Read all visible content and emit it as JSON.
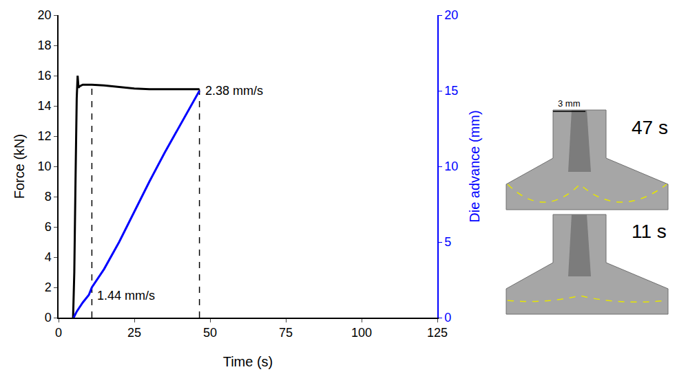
{
  "chart_data": {
    "type": "line",
    "x_label": "Time (s)",
    "y_label": "Force (kN)",
    "y2_label": "Die advance (mm)",
    "xlim": [
      0,
      125
    ],
    "xticks": [
      0,
      25,
      50,
      75,
      100,
      125
    ],
    "ylim": [
      0,
      20
    ],
    "yticks": [
      0,
      2,
      4,
      6,
      8,
      10,
      12,
      14,
      16,
      18,
      20
    ],
    "y2lim": [
      0,
      20
    ],
    "y2ticks": [
      0,
      5,
      10,
      15,
      20
    ],
    "grid": false,
    "series": [
      {
        "name": "Force (kN)",
        "color": "#000000",
        "axis": "y",
        "x": [
          4.8,
          5.2,
          5.6,
          6.0,
          6.3,
          6.6,
          7,
          8,
          9,
          10,
          11,
          15,
          20,
          25,
          30,
          35,
          40,
          46.5
        ],
        "values": [
          0,
          3,
          9,
          14.5,
          16.0,
          15.2,
          15.3,
          15.4,
          15.4,
          15.4,
          15.4,
          15.35,
          15.25,
          15.15,
          15.1,
          15.1,
          15.1,
          15.1
        ]
      },
      {
        "name": "Die advance (mm)",
        "color": "#0000ff",
        "axis": "y2",
        "x": [
          5,
          6,
          8,
          10,
          11,
          15,
          20,
          25,
          30,
          35,
          40,
          46.5
        ],
        "values": [
          0,
          0.4,
          1.0,
          1.5,
          2.0,
          3.2,
          5.0,
          7.0,
          9.0,
          10.9,
          12.7,
          15.0
        ]
      }
    ],
    "dashed_lines": [
      {
        "x": [
          11,
          11
        ],
        "y": [
          0,
          15.4
        ]
      },
      {
        "x": [
          46.5,
          46.5
        ],
        "y": [
          0,
          15.1
        ]
      }
    ],
    "line_style": "dashed",
    "annotations": [
      {
        "text": "1.44 mm/s",
        "x": 11,
        "y": 1.44,
        "axis": "y2"
      },
      {
        "text": "2.38 mm/s",
        "x": 46.5,
        "y": 15,
        "axis": "y2"
      }
    ],
    "insets": [
      {
        "label": "47 s"
      },
      {
        "label": "11 s"
      }
    ],
    "scale_bar": "3 mm"
  }
}
